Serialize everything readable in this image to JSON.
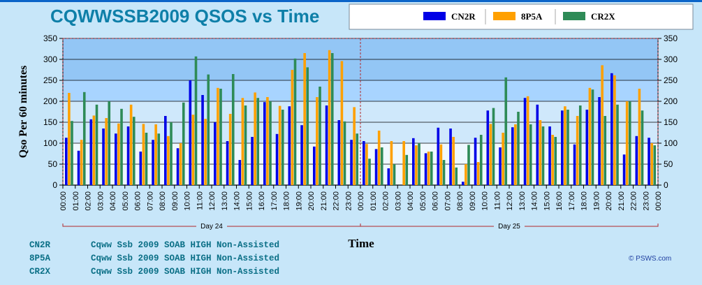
{
  "chart_data": {
    "type": "bar",
    "title": "CQWWSSB2009  QSOS vs Time",
    "ylabel": "Qso Per 60 minutes",
    "xlabel": "Time",
    "ylim": [
      0,
      350
    ],
    "yticks": [
      0,
      50,
      100,
      150,
      200,
      250,
      300,
      350
    ],
    "grid": true,
    "legend_position": "top-right",
    "colors": {
      "CN2R": "#0000e6",
      "8P5A": "#ffa000",
      "CR2X": "#2e8b57"
    },
    "categories": [
      "00:00",
      "01:00",
      "02:00",
      "03:00",
      "04:00",
      "05:00",
      "06:00",
      "07:00",
      "08:00",
      "09:00",
      "10:00",
      "11:00",
      "12:00",
      "13:00",
      "14:00",
      "15:00",
      "16:00",
      "17:00",
      "18:00",
      "19:00",
      "20:00",
      "21:00",
      "22:00",
      "23:00",
      "00:00",
      "01:00",
      "02:00",
      "03:00",
      "04:00",
      "05:00",
      "06:00",
      "07:00",
      "08:00",
      "09:00",
      "10:00",
      "11:00",
      "12:00",
      "13:00",
      "14:00",
      "15:00",
      "16:00",
      "17:00",
      "18:00",
      "19:00",
      "20:00",
      "21:00",
      "22:00",
      "23:00",
      "00:00"
    ],
    "series": [
      {
        "name": "CN2R",
        "values": [
          113,
          82,
          157,
          135,
          123,
          140,
          80,
          108,
          165,
          88,
          250,
          215,
          150,
          105,
          60,
          115,
          198,
          122,
          188,
          143,
          92,
          190,
          155,
          108,
          105,
          86,
          40,
          0,
          112,
          76,
          137,
          135,
          8,
          113,
          178,
          90,
          138,
          208,
          192,
          140,
          178,
          97,
          180,
          210,
          267,
          73,
          117,
          113,
          0
        ]
      },
      {
        "name": "8P5A",
        "values": [
          220,
          108,
          166,
          160,
          147,
          192,
          146,
          145,
          117,
          100,
          168,
          158,
          232,
          170,
          208,
          221,
          210,
          189,
          275,
          315,
          210,
          322,
          296,
          186,
          98,
          130,
          105,
          105,
          95,
          80,
          97,
          115,
          50,
          55,
          146,
          125,
          145,
          212,
          155,
          120,
          188,
          165,
          232,
          286,
          262,
          200,
          230,
          100,
          0
        ]
      },
      {
        "name": "CR2X",
        "values": [
          153,
          222,
          192,
          200,
          182,
          163,
          125,
          123,
          150,
          197,
          307,
          264,
          230,
          265,
          190,
          208,
          200,
          180,
          302,
          281,
          235,
          315,
          152,
          123,
          63,
          90,
          50,
          72,
          100,
          80,
          60,
          42,
          96,
          120,
          184,
          257,
          175,
          145,
          140,
          115,
          180,
          190,
          228,
          165,
          192,
          200,
          178,
          95,
          0
        ]
      }
    ],
    "groups": [
      "Day 24",
      "Day 25"
    ]
  },
  "notes": [
    {
      "call": "CN2R",
      "text": "Cqww Ssb 2009 SOAB HIGH Non-Assisted"
    },
    {
      "call": "8P5A",
      "text": "Cqww Ssb 2009 SOAB HIGH Non-Assisted"
    },
    {
      "call": "CR2X",
      "text": "Cqww Ssb 2009 SOAB HIGH Non-Assisted"
    }
  ],
  "footer": {
    "copyright": "© PSWS.com"
  }
}
